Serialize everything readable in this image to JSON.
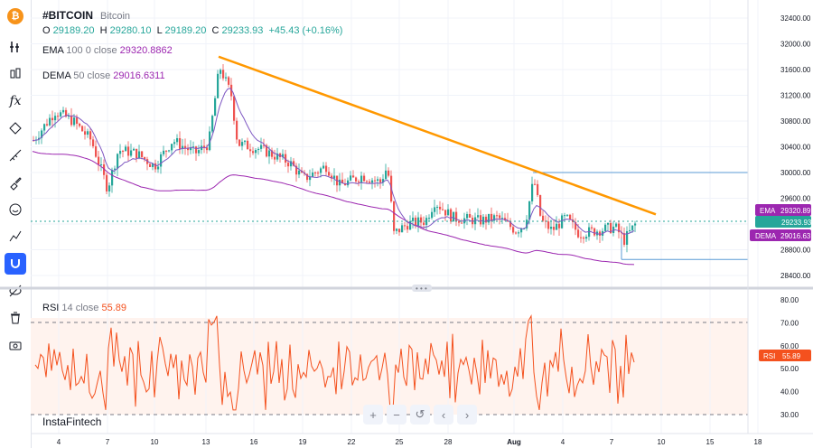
{
  "symbol": {
    "ticker": "#BITCOIN",
    "name": "Bitcoin"
  },
  "ohlc": {
    "o_label": "O",
    "o": "29189.20",
    "h_label": "H",
    "h": "29280.10",
    "l_label": "L",
    "l": "29189.20",
    "c_label": "C",
    "c": "29233.93",
    "change": "+45.43 (+0.16%)"
  },
  "ema": {
    "label": "EMA",
    "params": "100  0  close",
    "value": "29320.8862",
    "badge": "29320.89"
  },
  "dema": {
    "label": "DEMA",
    "params": "50  close",
    "value": "29016.6311",
    "badge": "29016.63"
  },
  "last_price_badge": "29233.93",
  "rsi": {
    "label": "RSI",
    "params": "14  close",
    "value": "55.89",
    "badge_label": "RSI",
    "badge": "55.89"
  },
  "price_axis_ticks": [
    "32400.00",
    "32000.00",
    "31600.00",
    "31200.00",
    "30800.00",
    "30400.00",
    "30000.00",
    "29600.00",
    "29200.00",
    "28800.00",
    "28400.00"
  ],
  "rsi_axis_ticks": [
    "80.00",
    "70.00",
    "60.00",
    "50.00",
    "40.00",
    "30.00"
  ],
  "time_axis_ticks": [
    "4",
    "7",
    "10",
    "13",
    "16",
    "19",
    "22",
    "25",
    "28",
    "Aug",
    "4",
    "7",
    "10",
    "15",
    "18"
  ],
  "brand": "InstaFintech",
  "nav_buttons": [
    "+",
    "−",
    "↺",
    "‹",
    "›"
  ],
  "colors": {
    "up": "#26a69a",
    "down": "#ef5350",
    "ema": "#9c27b0",
    "dema": "#7e57c2",
    "trendline": "#ff9800",
    "rsi": "#f4511e",
    "hline": "#5b9bd5"
  },
  "chart_data": {
    "type": "candlestick",
    "trendline": {
      "from": 31800,
      "to": 29350
    },
    "hlines": [
      30000,
      28650
    ],
    "rsi_levels": [
      70,
      30
    ],
    "price_range": [
      28200,
      32600
    ],
    "rsi_range": [
      25,
      85
    ]
  }
}
